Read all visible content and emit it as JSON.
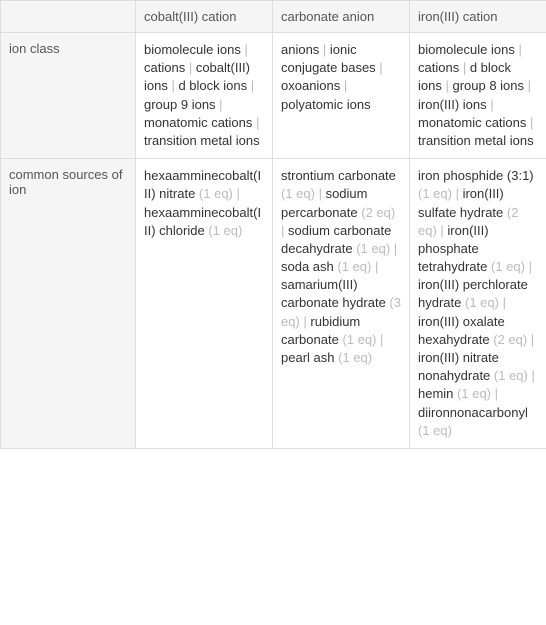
{
  "headers": {
    "blank": "",
    "col1": "cobalt(III) cation",
    "col2": "carbonate anion",
    "col3": "iron(III) cation"
  },
  "rows": [
    {
      "label": "ion class",
      "cells": [
        {
          "items": [
            {
              "text": "biomolecule ions"
            },
            {
              "text": "cations"
            },
            {
              "text": "cobalt(III) ions"
            },
            {
              "text": "d block ions"
            },
            {
              "text": "group 9 ions"
            },
            {
              "text": "monatomic cations"
            },
            {
              "text": "transition metal ions"
            }
          ]
        },
        {
          "items": [
            {
              "text": "anions"
            },
            {
              "text": "ionic conjugate bases"
            },
            {
              "text": "oxoanions"
            },
            {
              "text": "polyatomic ions"
            }
          ]
        },
        {
          "items": [
            {
              "text": "biomolecule ions"
            },
            {
              "text": "cations"
            },
            {
              "text": "d block ions"
            },
            {
              "text": "group 8 ions"
            },
            {
              "text": "iron(III) ions"
            },
            {
              "text": "monatomic cations"
            },
            {
              "text": "transition metal ions"
            }
          ]
        }
      ]
    },
    {
      "label": "common sources of ion",
      "cells": [
        {
          "items": [
            {
              "text": "hexaamminecobalt(III) nitrate",
              "eq": "(1 eq)"
            },
            {
              "text": "hexaamminecobalt(III) chloride",
              "eq": "(1 eq)"
            }
          ]
        },
        {
          "items": [
            {
              "text": "strontium carbonate",
              "eq": "(1 eq)"
            },
            {
              "text": "sodium percarbonate",
              "eq": "(2 eq)"
            },
            {
              "text": "sodium carbonate decahydrate",
              "eq": "(1 eq)"
            },
            {
              "text": "soda ash",
              "eq": "(1 eq)"
            },
            {
              "text": "samarium(III) carbonate hydrate",
              "eq": "(3 eq)"
            },
            {
              "text": "rubidium carbonate",
              "eq": "(1 eq)"
            },
            {
              "text": "pearl ash",
              "eq": "(1 eq)"
            }
          ]
        },
        {
          "items": [
            {
              "text": "iron phosphide (3:1)",
              "eq": "(1 eq)"
            },
            {
              "text": "iron(III) sulfate hydrate",
              "eq": "(2 eq)"
            },
            {
              "text": "iron(III) phosphate tetrahydrate",
              "eq": "(1 eq)"
            },
            {
              "text": "iron(III) perchlorate hydrate",
              "eq": "(1 eq)"
            },
            {
              "text": "iron(III) oxalate hexahydrate",
              "eq": "(2 eq)"
            },
            {
              "text": "iron(III) nitrate nonahydrate",
              "eq": "(1 eq)"
            },
            {
              "text": "hemin",
              "eq": "(1 eq)"
            },
            {
              "text": "diironnonacarbonyl",
              "eq": "(1 eq)"
            }
          ]
        }
      ]
    }
  ],
  "separator": " | "
}
